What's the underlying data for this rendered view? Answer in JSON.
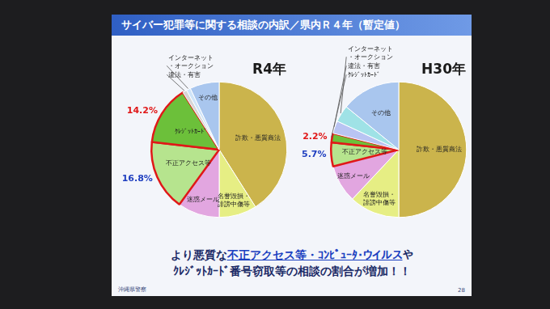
{
  "title": "サイバー犯罪等に関する相談の内訳／県内Ｒ４年（暫定値）",
  "chart_data": [
    {
      "type": "pie",
      "title": "R4年",
      "categories": [
        "詐欺・悪質商法",
        "名誉毀損・誹謗中傷等",
        "迷惑メール",
        "不正アクセス等",
        "ｸﾚｼﾞｯﾄｶｰﾄﾞ",
        "違法・有害",
        "インターネット・オークション",
        "その他"
      ],
      "values": [
        41,
        9,
        10,
        16.8,
        14.2,
        1,
        1,
        7
      ],
      "value_labels": [
        null,
        null,
        null,
        "16.8%",
        "14.2%",
        null,
        null,
        null
      ],
      "colors": [
        "#cbb44c",
        "#e6ee84",
        "#e2a6e0",
        "#b6e48e",
        "#6cc03a",
        "#d6d6d6",
        "#cfe4f8",
        "#a9c6ee"
      ]
    },
    {
      "type": "pie",
      "title": "H30年",
      "categories": [
        "詐欺・悪質商法",
        "名誉毀損・誹謗中傷等",
        "迷惑メール",
        "不正アクセス等",
        "ｸﾚｼﾞｯﾄｶｰﾄﾞ",
        "違法・有害",
        "インターネット・オークション",
        "その他"
      ],
      "values": [
        50,
        12,
        9,
        5.7,
        2.2,
        3,
        4,
        14.1
      ],
      "value_labels": [
        null,
        null,
        null,
        "5.7%",
        "2.2%",
        null,
        null,
        null
      ],
      "colors": [
        "#cbb44c",
        "#e6ee84",
        "#e2a6e0",
        "#b6e48e",
        "#6cc03a",
        "#b9c4f2",
        "#9fe2e6",
        "#a9c6ee"
      ]
    }
  ],
  "message": [
    [
      "より悪質な",
      "不正アクセス等・ｺﾝﾋﾟｭｰﾀ・ウイルス",
      "や"
    ],
    [
      "ｸﾚｼﾞｯﾄｶｰﾄﾞ番号窃取等の相談の割合が増加！！"
    ]
  ],
  "footer": "沖縄県警察",
  "page": 28
}
